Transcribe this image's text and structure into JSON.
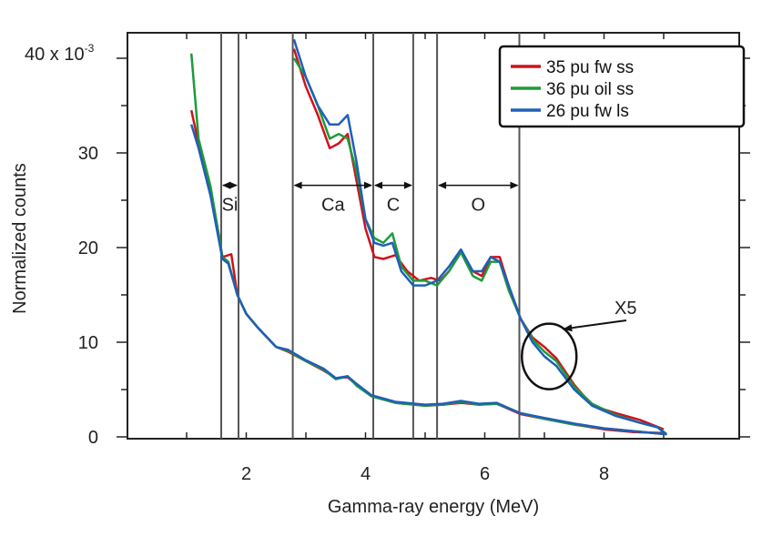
{
  "chart_data": {
    "type": "line",
    "title": "",
    "xlabel": "Gamma-ray energy (MeV)",
    "ylabel": "Normalized counts",
    "y_multiplier_label": "40 x 10",
    "y_multiplier_exp": "-3",
    "xlim": [
      0.2,
      9.1
    ],
    "ylim": [
      0,
      42
    ],
    "x_ticks": [
      2,
      4,
      6,
      8
    ],
    "y_ticks": [
      0,
      10,
      20,
      30
    ],
    "x_tick_labels": [
      "2",
      "4",
      "6",
      "8"
    ],
    "y_tick_labels": [
      "0",
      "10",
      "20",
      "30"
    ],
    "grid": false,
    "legend_position": "top-right",
    "colors": {
      "red": "#d0121b",
      "green": "#1e9a3a",
      "blue": "#1f5fb8"
    },
    "series": [
      {
        "name": "35 pu fw ss",
        "color": "#d0121b",
        "values_full": [
          [
            1.08,
            34.5
          ],
          [
            1.2,
            31
          ],
          [
            1.4,
            26
          ],
          [
            1.55,
            21
          ],
          [
            1.6,
            19
          ],
          [
            1.65,
            19.1
          ],
          [
            1.75,
            19.3
          ],
          [
            1.85,
            15
          ],
          [
            2.0,
            13
          ],
          [
            2.2,
            11.5
          ],
          [
            2.5,
            9.5
          ],
          [
            2.7,
            9.0
          ],
          [
            3.0,
            8.0
          ],
          [
            3.3,
            7.0
          ],
          [
            3.5,
            6.2
          ],
          [
            3.7,
            6.3
          ],
          [
            3.85,
            5.5
          ],
          [
            4.1,
            4.3
          ],
          [
            4.5,
            3.6
          ],
          [
            5.0,
            3.3
          ],
          [
            5.3,
            3.4
          ],
          [
            5.6,
            3.6
          ],
          [
            5.9,
            3.4
          ],
          [
            6.2,
            3.5
          ],
          [
            6.6,
            2.4
          ],
          [
            7.0,
            1.9
          ],
          [
            7.5,
            1.3
          ],
          [
            8.0,
            0.8
          ],
          [
            8.5,
            0.5
          ],
          [
            9.0,
            0.4
          ]
        ],
        "values_x5": [
          [
            2.8,
            41
          ],
          [
            3.0,
            37
          ],
          [
            3.2,
            34
          ],
          [
            3.4,
            30.5
          ],
          [
            3.55,
            31
          ],
          [
            3.7,
            32
          ],
          [
            3.85,
            27
          ],
          [
            4.0,
            22
          ],
          [
            4.15,
            19
          ],
          [
            4.3,
            18.8
          ],
          [
            4.5,
            19.2
          ],
          [
            4.7,
            17.5
          ],
          [
            4.9,
            16.5
          ],
          [
            5.1,
            16.8
          ],
          [
            5.25,
            16.5
          ],
          [
            5.4,
            17.5
          ],
          [
            5.6,
            19.5
          ],
          [
            5.8,
            17.5
          ],
          [
            5.95,
            17
          ],
          [
            6.1,
            19
          ],
          [
            6.25,
            19
          ],
          [
            6.4,
            16
          ],
          [
            6.6,
            12.5
          ],
          [
            6.8,
            10.5
          ],
          [
            7.0,
            9.5
          ],
          [
            7.2,
            8.3
          ],
          [
            7.5,
            5.5
          ],
          [
            7.8,
            3.3
          ],
          [
            8.2,
            2.5
          ],
          [
            8.6,
            1.8
          ],
          [
            9.0,
            0.8
          ]
        ]
      },
      {
        "name": "36 pu oil ss",
        "color": "#1e9a3a",
        "values_full": [
          [
            1.08,
            40.5
          ],
          [
            1.2,
            31.5
          ],
          [
            1.4,
            26.5
          ],
          [
            1.55,
            21
          ],
          [
            1.6,
            19
          ],
          [
            1.7,
            18.5
          ],
          [
            1.85,
            15
          ],
          [
            2.0,
            13
          ],
          [
            2.2,
            11.5
          ],
          [
            2.5,
            9.5
          ],
          [
            2.7,
            9.1
          ],
          [
            3.0,
            8.0
          ],
          [
            3.3,
            7.1
          ],
          [
            3.5,
            6.1
          ],
          [
            3.7,
            6.4
          ],
          [
            3.85,
            5.4
          ],
          [
            4.1,
            4.3
          ],
          [
            4.5,
            3.6
          ],
          [
            5.0,
            3.3
          ],
          [
            5.3,
            3.4
          ],
          [
            5.6,
            3.7
          ],
          [
            5.9,
            3.4
          ],
          [
            6.2,
            3.5
          ],
          [
            6.6,
            2.5
          ],
          [
            7.0,
            1.9
          ],
          [
            7.5,
            1.3
          ],
          [
            8.0,
            0.9
          ],
          [
            8.5,
            0.6
          ],
          [
            9.0,
            0.3
          ]
        ],
        "values_x5": [
          [
            2.8,
            40
          ],
          [
            3.0,
            38
          ],
          [
            3.2,
            35
          ],
          [
            3.4,
            31.5
          ],
          [
            3.55,
            32
          ],
          [
            3.7,
            31.5
          ],
          [
            3.85,
            28
          ],
          [
            4.0,
            23
          ],
          [
            4.15,
            21
          ],
          [
            4.3,
            20.5
          ],
          [
            4.45,
            21.5
          ],
          [
            4.6,
            18
          ],
          [
            4.8,
            16.5
          ],
          [
            5.0,
            16.5
          ],
          [
            5.2,
            16
          ],
          [
            5.4,
            17.5
          ],
          [
            5.6,
            19.5
          ],
          [
            5.8,
            17
          ],
          [
            5.95,
            16.5
          ],
          [
            6.1,
            18.5
          ],
          [
            6.25,
            18.5
          ],
          [
            6.4,
            15.5
          ],
          [
            6.6,
            12.5
          ],
          [
            6.8,
            10.3
          ],
          [
            7.0,
            9.0
          ],
          [
            7.2,
            8.0
          ],
          [
            7.5,
            5.3
          ],
          [
            7.8,
            3.5
          ],
          [
            8.2,
            2.3
          ],
          [
            8.6,
            1.5
          ],
          [
            8.9,
            1.0
          ],
          [
            9.05,
            0.3
          ]
        ]
      },
      {
        "name": "26 pu fw ls",
        "color": "#1f5fb8",
        "values_full": [
          [
            1.08,
            33
          ],
          [
            1.2,
            30.5
          ],
          [
            1.4,
            25.5
          ],
          [
            1.55,
            20.5
          ],
          [
            1.6,
            18.8
          ],
          [
            1.7,
            18.3
          ],
          [
            1.85,
            15
          ],
          [
            2.0,
            13
          ],
          [
            2.2,
            11.5
          ],
          [
            2.5,
            9.5
          ],
          [
            2.7,
            9.2
          ],
          [
            3.0,
            8.1
          ],
          [
            3.3,
            7.2
          ],
          [
            3.5,
            6.2
          ],
          [
            3.7,
            6.4
          ],
          [
            3.85,
            5.6
          ],
          [
            4.1,
            4.4
          ],
          [
            4.5,
            3.7
          ],
          [
            5.0,
            3.4
          ],
          [
            5.3,
            3.5
          ],
          [
            5.6,
            3.8
          ],
          [
            5.9,
            3.5
          ],
          [
            6.2,
            3.6
          ],
          [
            6.6,
            2.5
          ],
          [
            7.0,
            2.0
          ],
          [
            7.5,
            1.4
          ],
          [
            8.0,
            0.9
          ],
          [
            8.5,
            0.6
          ],
          [
            9.0,
            0.3
          ]
        ],
        "values_x5": [
          [
            2.8,
            42
          ],
          [
            3.0,
            38
          ],
          [
            3.2,
            35
          ],
          [
            3.4,
            33
          ],
          [
            3.55,
            33
          ],
          [
            3.7,
            34
          ],
          [
            3.85,
            29
          ],
          [
            4.0,
            23
          ],
          [
            4.15,
            20.5
          ],
          [
            4.3,
            20.2
          ],
          [
            4.45,
            20.5
          ],
          [
            4.6,
            17.5
          ],
          [
            4.8,
            16
          ],
          [
            5.0,
            16
          ],
          [
            5.2,
            16.5
          ],
          [
            5.4,
            18
          ],
          [
            5.6,
            19.8
          ],
          [
            5.8,
            17.5
          ],
          [
            5.95,
            17.5
          ],
          [
            6.1,
            19
          ],
          [
            6.25,
            18.5
          ],
          [
            6.4,
            16
          ],
          [
            6.6,
            12.5
          ],
          [
            6.8,
            10
          ],
          [
            7.0,
            8.5
          ],
          [
            7.2,
            7.5
          ],
          [
            7.5,
            5.0
          ],
          [
            7.8,
            3.3
          ],
          [
            8.2,
            2.2
          ],
          [
            8.6,
            1.5
          ],
          [
            8.9,
            1.0
          ],
          [
            9.05,
            0.2
          ]
        ]
      }
    ],
    "vertical_lines": [
      1.58,
      1.87,
      2.78,
      4.13,
      4.8,
      5.2,
      6.58
    ],
    "regions": [
      {
        "label": "Si",
        "x_from": 1.58,
        "x_to": 1.87,
        "y": 26
      },
      {
        "label": "Ca",
        "x_from": 2.78,
        "x_to": 4.13,
        "y": 26
      },
      {
        "label": "C",
        "x_from": 4.13,
        "x_to": 4.8,
        "y": 26
      },
      {
        "label": "O",
        "x_from": 5.2,
        "x_to": 6.58,
        "y": 26
      }
    ],
    "annotation": {
      "label": "X5",
      "ellipse_center": [
        7.08,
        8.5
      ]
    }
  }
}
